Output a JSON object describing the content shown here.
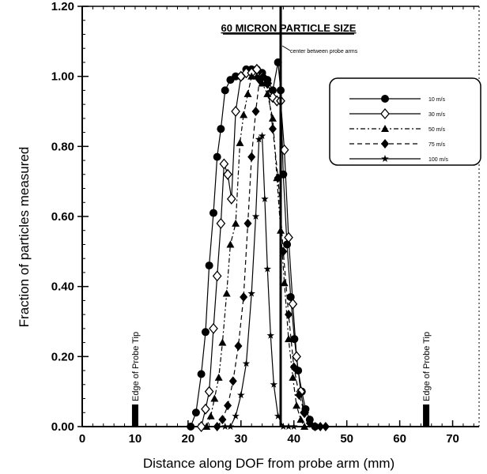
{
  "chart_data": {
    "type": "line",
    "title": "60 MICRON PARTICLE SIZE",
    "xlabel": "Distance along DOF from probe arm (mm)",
    "ylabel": "Fraction of particles measured",
    "xlim": [
      0,
      75
    ],
    "ylim": [
      0,
      1.2
    ],
    "x_ticks": [
      {
        "value": 0,
        "label": "0"
      },
      {
        "value": 10,
        "label": "10"
      },
      {
        "value": 20,
        "label": "20"
      },
      {
        "value": 30,
        "label": "30"
      },
      {
        "value": 40,
        "label": "40"
      },
      {
        "value": 50,
        "label": "50"
      },
      {
        "value": 60,
        "label": "60"
      },
      {
        "value": 70,
        "label": "70"
      }
    ],
    "y_ticks": [
      {
        "value": 0,
        "label": "0.00"
      },
      {
        "value": 0.2,
        "label": "0.20"
      },
      {
        "value": 0.4,
        "label": "0.40"
      },
      {
        "value": 0.6,
        "label": "0.60"
      },
      {
        "value": 0.8,
        "label": "0.80"
      },
      {
        "value": 1.0,
        "label": "1.00"
      },
      {
        "value": 1.2,
        "label": "1.20"
      }
    ],
    "legend_position": "top-right",
    "grid": false,
    "series": [
      {
        "name": "10 m/s",
        "marker": "circle",
        "dash": "",
        "x": [
          20.5,
          21.5,
          22.5,
          23.3,
          24.0,
          24.8,
          25.5,
          26.2,
          27.0,
          28.0,
          29.0,
          30.0,
          31.0,
          32.0,
          33.0,
          34.0,
          35.0,
          36.0,
          37.0,
          37.5,
          38.0,
          38.7,
          39.4,
          40.1,
          40.8,
          41.5,
          42.2,
          43.0,
          44.0
        ],
        "y": [
          0.0,
          0.04,
          0.15,
          0.27,
          0.46,
          0.61,
          0.77,
          0.85,
          0.96,
          0.99,
          1.0,
          1.0,
          1.02,
          1.02,
          1.02,
          1.01,
          0.99,
          0.96,
          1.04,
          0.96,
          0.72,
          0.52,
          0.37,
          0.25,
          0.16,
          0.1,
          0.05,
          0.02,
          0.0
        ]
      },
      {
        "name": "30 m/s",
        "marker": "diamond-open",
        "dash": "",
        "x": [
          22.5,
          23.3,
          24.0,
          24.8,
          25.5,
          26.2,
          26.8,
          27.5,
          28.2,
          29.0,
          30.0,
          31.0,
          32.0,
          33.0,
          34.0,
          35.0,
          36.0,
          36.8,
          37.5,
          38.2,
          39.0,
          39.8,
          40.5,
          41.3,
          42.0
        ],
        "y": [
          0.0,
          0.05,
          0.1,
          0.28,
          0.43,
          0.58,
          0.75,
          0.72,
          0.65,
          0.9,
          1.0,
          1.01,
          1.01,
          1.02,
          1.0,
          0.98,
          0.94,
          0.93,
          0.93,
          0.79,
          0.54,
          0.35,
          0.2,
          0.1,
          0.04
        ]
      },
      {
        "name": "50 m/s",
        "marker": "triangle",
        "dash": "6,3,2,3",
        "x": [
          23.5,
          24.3,
          25.0,
          25.8,
          26.5,
          27.3,
          28.0,
          29.0,
          29.8,
          30.5,
          31.3,
          32.0,
          33.0,
          34.0,
          35.0,
          36.0,
          36.8,
          37.5,
          38.2,
          39.0,
          39.8,
          40.5,
          41.3,
          42.0
        ],
        "y": [
          0.0,
          0.03,
          0.08,
          0.14,
          0.24,
          0.38,
          0.52,
          0.58,
          0.81,
          0.89,
          0.95,
          1.0,
          1.0,
          0.98,
          0.95,
          0.88,
          0.71,
          0.56,
          0.41,
          0.25,
          0.14,
          0.06,
          0.02,
          0.0
        ]
      },
      {
        "name": "75 m/s",
        "marker": "diamond",
        "dash": "6,4",
        "x": [
          25.5,
          26.5,
          27.5,
          28.5,
          29.5,
          30.5,
          31.3,
          32.0,
          32.8,
          33.5,
          34.2,
          35.0,
          36.0,
          37.0,
          38.0,
          39.0,
          40.0,
          41.0,
          42.0,
          43.0,
          44.0,
          45.0,
          46.0
        ],
        "y": [
          0.0,
          0.02,
          0.06,
          0.13,
          0.23,
          0.37,
          0.58,
          0.77,
          0.9,
          0.99,
          1.0,
          0.98,
          0.85,
          0.71,
          0.5,
          0.32,
          0.17,
          0.09,
          0.04,
          0.01,
          0.0,
          0.0,
          0.0
        ]
      },
      {
        "name": "100 m/s",
        "marker": "star",
        "dash": "",
        "x": [
          27.0,
          28.0,
          29.0,
          30.0,
          31.0,
          32.0,
          32.8,
          33.4,
          34.0,
          34.5,
          35.0,
          35.6,
          36.2,
          37.0,
          38.0,
          39.0,
          40.0
        ],
        "y": [
          0.0,
          0.0,
          0.03,
          0.09,
          0.18,
          0.38,
          0.6,
          0.82,
          0.83,
          0.65,
          0.45,
          0.26,
          0.12,
          0.03,
          0.0,
          0.0,
          0.0
        ]
      }
    ],
    "annotations": [
      {
        "text": "Edge of Probe Tip",
        "x": 10
      },
      {
        "text": "Edge of Probe Tip",
        "x": 65
      },
      {
        "text": "center between probe arms",
        "x": 37.5
      }
    ]
  }
}
